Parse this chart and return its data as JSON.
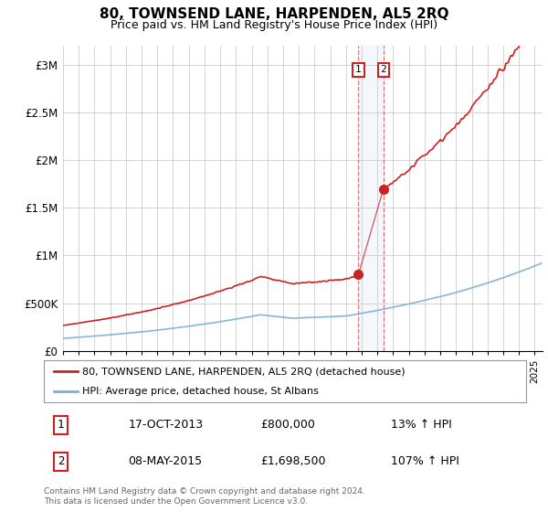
{
  "title": "80, TOWNSEND LANE, HARPENDEN, AL5 2RQ",
  "subtitle": "Price paid vs. HM Land Registry's House Price Index (HPI)",
  "title_fontsize": 11,
  "subtitle_fontsize": 9,
  "ylabel_ticks": [
    "£0",
    "£500K",
    "£1M",
    "£1.5M",
    "£2M",
    "£2.5M",
    "£3M"
  ],
  "ytick_vals": [
    0,
    500000,
    1000000,
    1500000,
    2000000,
    2500000,
    3000000
  ],
  "ylim": [
    0,
    3200000
  ],
  "xlim_start": 1995.0,
  "xlim_end": 2025.5,
  "hpi_color": "#7ab0d4",
  "price_color": "#cc2222",
  "transaction1_year": 2013,
  "transaction1_month": 10,
  "transaction1_price": 800000,
  "transaction2_year": 2015,
  "transaction2_month": 5,
  "transaction2_price": 1698500,
  "legend_line1": "80, TOWNSEND LANE, HARPENDEN, AL5 2RQ (detached house)",
  "legend_line2": "HPI: Average price, detached house, St Albans",
  "table_row1": [
    "1",
    "17-OCT-2013",
    "£800,000",
    "13% ↑ HPI"
  ],
  "table_row2": [
    "2",
    "08-MAY-2015",
    "£1,698,500",
    "107% ↑ HPI"
  ],
  "footer": "Contains HM Land Registry data © Crown copyright and database right 2024.\nThis data is licensed under the Open Government Licence v3.0.",
  "bg_color": "#ffffff",
  "grid_color": "#cccccc"
}
